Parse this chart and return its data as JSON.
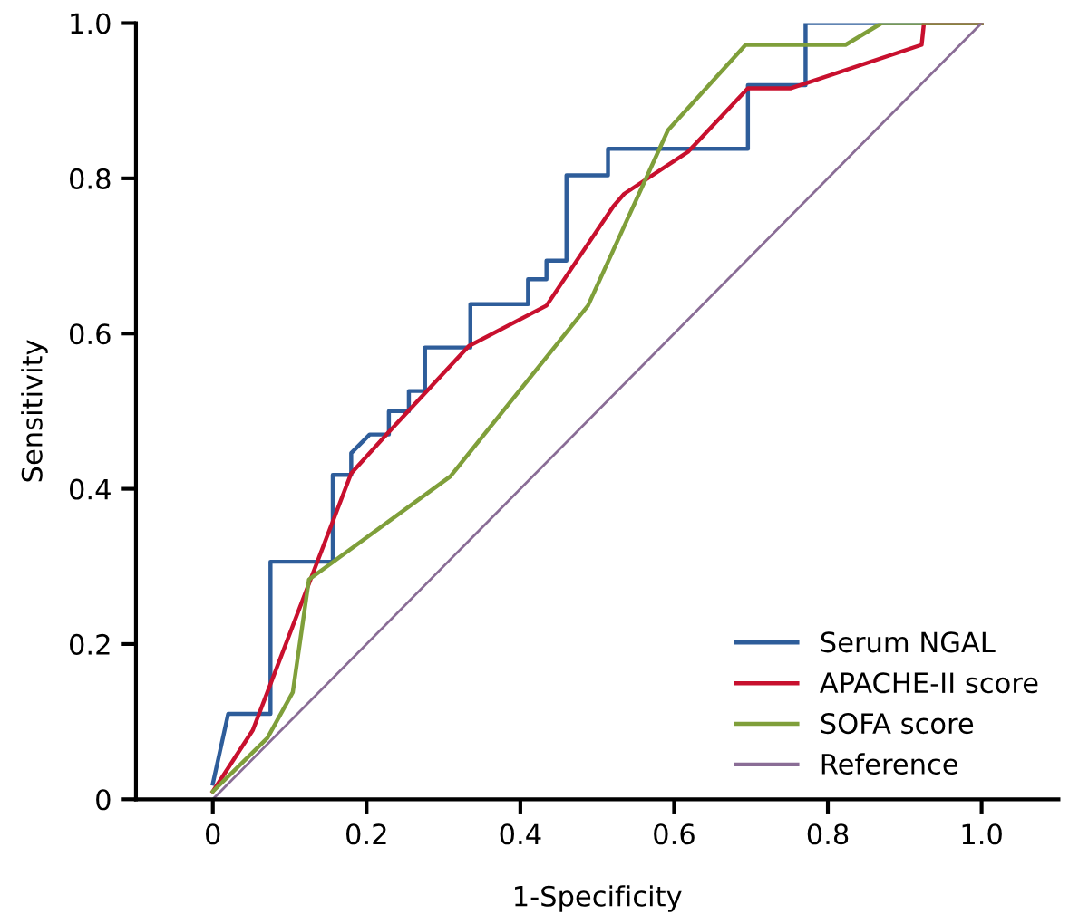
{
  "chart_data": {
    "type": "line",
    "xlabel": "1-Specificity",
    "ylabel": "Sensitivity",
    "xlim": [
      -0.1,
      1.1
    ],
    "ylim": [
      0,
      1
    ],
    "xticks": [
      0,
      0.2,
      0.4,
      0.6,
      0.8,
      {
        "value": 1,
        "label": "1.0"
      }
    ],
    "yticks": [
      0,
      0.2,
      0.4,
      0.6,
      0.8,
      {
        "value": 1,
        "label": "1.0"
      }
    ],
    "grid": false,
    "legend": "bottom right",
    "marker": "none",
    "line_style": "solid",
    "series": [
      {
        "name": "Serum NGAL",
        "color": "#2e5d9a",
        "x": [
          0,
          0.02,
          0.075,
          0.075,
          0.156,
          0.156,
          0.18,
          0.18,
          0.204,
          0.229,
          0.229,
          0.255,
          0.255,
          0.276,
          0.276,
          0.335,
          0.335,
          0.41,
          0.41,
          0.434,
          0.434,
          0.46,
          0.46,
          0.514,
          0.514,
          0.696,
          0.696,
          0.771,
          0.771,
          1
        ],
        "values": [
          0.02,
          0.11,
          0.11,
          0.306,
          0.306,
          0.418,
          0.418,
          0.446,
          0.47,
          0.47,
          0.5,
          0.5,
          0.526,
          0.526,
          0.582,
          0.582,
          0.638,
          0.638,
          0.67,
          0.67,
          0.694,
          0.694,
          0.804,
          0.804,
          0.838,
          0.838,
          0.92,
          0.92,
          1,
          1
        ]
      },
      {
        "name": "APACHE-II score",
        "color": "#c8102e",
        "x": [
          0,
          0.052,
          0.18,
          0.226,
          0.333,
          0.434,
          0.521,
          0.535,
          0.618,
          0.696,
          0.752,
          0.922,
          0.925,
          1
        ],
        "values": [
          0.01,
          0.089,
          0.42,
          0.47,
          0.584,
          0.636,
          0.764,
          0.78,
          0.834,
          0.916,
          0.916,
          0.972,
          1,
          1
        ]
      },
      {
        "name": "SOFA score",
        "color": "#7f9f3a",
        "x": [
          0,
          0.071,
          0.104,
          0.125,
          0.309,
          0.488,
          0.592,
          0.693,
          0.823,
          0.87,
          1
        ],
        "values": [
          0.01,
          0.079,
          0.138,
          0.283,
          0.416,
          0.636,
          0.862,
          0.972,
          0.972,
          1,
          1
        ]
      },
      {
        "name": "Reference",
        "color": "#8a6d96",
        "x": [
          0,
          1
        ],
        "values": [
          0,
          1
        ]
      }
    ]
  }
}
